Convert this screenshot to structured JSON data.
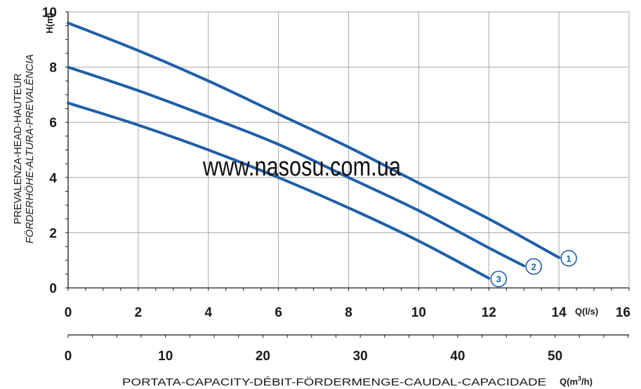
{
  "watermark": "www.nasosu.com.ua",
  "colors": {
    "curve": "#1f5fa8",
    "grid": "#a8a8a8",
    "axis": "#1a1a1a",
    "tag_fill": "#ffffff"
  },
  "chart_data": {
    "type": "line",
    "grid": true,
    "y_axis": {
      "title_line1": "PREVALENZA-HEAD-HAUTEUR",
      "title_line2": "FÖRDERHÖHE-ALTURA-PREVALÊNCIA",
      "unit": "H(m)",
      "range": [
        0,
        10
      ],
      "ticks": [
        "0",
        "2",
        "4",
        "6",
        "8",
        "10"
      ]
    },
    "x_axis_primary": {
      "unit": "Q(l/s)",
      "range": [
        0,
        16
      ],
      "ticks": [
        "0",
        "2",
        "4",
        "6",
        "8",
        "10",
        "12",
        "14",
        "16"
      ]
    },
    "x_axis_secondary": {
      "unit_base": "Q(m",
      "unit_sup": "3",
      "unit_tail": "/h)",
      "range": [
        0,
        57.6
      ],
      "ticks": [
        "0",
        "10",
        "20",
        "30",
        "40",
        "50"
      ]
    },
    "x_title": "PORTATA-CAPACITY-DÉBIT-FÖRDERMENGE-CAUDAL-CAPACIDADE",
    "series": [
      {
        "label": "1",
        "x": [
          0,
          2,
          4,
          6,
          8,
          10,
          12,
          14
        ],
        "y": [
          9.6,
          8.6,
          7.5,
          6.3,
          5.1,
          3.8,
          2.5,
          1.1
        ]
      },
      {
        "label": "2",
        "x": [
          0,
          2,
          4,
          6,
          8,
          10,
          12,
          13
        ],
        "y": [
          8.0,
          7.15,
          6.2,
          5.2,
          4.0,
          2.8,
          1.45,
          0.8
        ]
      },
      {
        "label": "3",
        "x": [
          0,
          2,
          4,
          6,
          8,
          10,
          12
        ],
        "y": [
          6.7,
          5.9,
          5.0,
          4.0,
          2.9,
          1.7,
          0.35
        ]
      }
    ]
  }
}
